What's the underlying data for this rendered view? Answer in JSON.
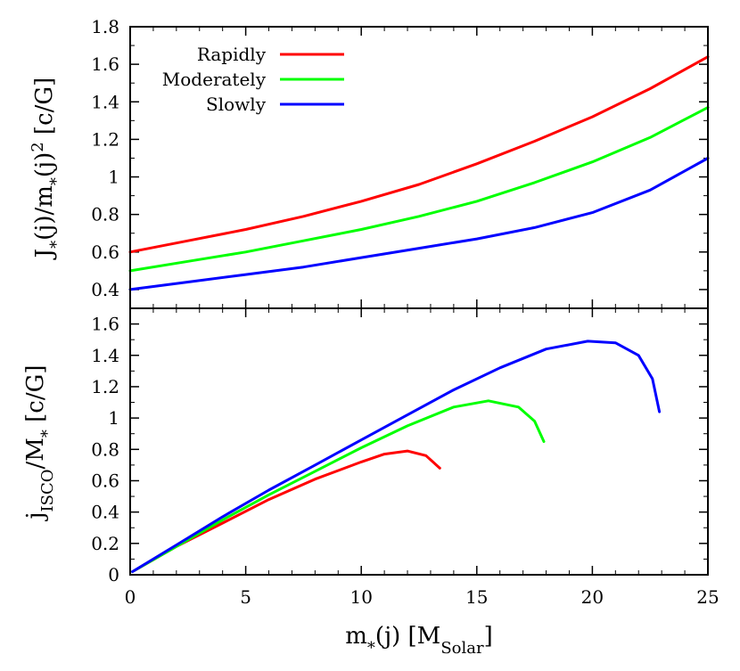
{
  "chart_data": [
    {
      "type": "line",
      "panel": "top",
      "ylabel_parts": {
        "main": "J",
        "sub1": "*",
        "mid": "(j)/m",
        "sub2": "*",
        "tail": "(j)",
        "sup": "2",
        "unit": " [c/G]"
      },
      "xlim": [
        0,
        25
      ],
      "ylim": [
        0.3,
        1.8
      ],
      "yticks": [
        0.4,
        0.6,
        0.8,
        1,
        1.2,
        1.4,
        1.6,
        1.8
      ],
      "ytick_labels": [
        "0.4",
        "0.6",
        "0.8",
        "1",
        "1.2",
        "1.4",
        "1.6",
        "1.8"
      ],
      "legend": {
        "position": "top-left"
      },
      "series": [
        {
          "name": "Rapidly",
          "color": "#ff0000",
          "x": [
            0,
            2.5,
            5,
            7.5,
            10,
            12.5,
            15,
            17.5,
            20,
            22.5,
            25
          ],
          "y": [
            0.6,
            0.66,
            0.72,
            0.79,
            0.87,
            0.96,
            1.07,
            1.19,
            1.32,
            1.47,
            1.64
          ]
        },
        {
          "name": "Moderately",
          "color": "#00ff00",
          "x": [
            0,
            2.5,
            5,
            7.5,
            10,
            12.5,
            15,
            17.5,
            20,
            22.5,
            25
          ],
          "y": [
            0.5,
            0.55,
            0.6,
            0.66,
            0.72,
            0.79,
            0.87,
            0.97,
            1.08,
            1.21,
            1.37
          ]
        },
        {
          "name": "Slowly",
          "color": "#0000ff",
          "x": [
            0,
            2.5,
            5,
            7.5,
            10,
            12.5,
            15,
            17.5,
            20,
            22.5,
            25
          ],
          "y": [
            0.4,
            0.44,
            0.48,
            0.52,
            0.57,
            0.62,
            0.67,
            0.73,
            0.81,
            0.93,
            1.1
          ]
        }
      ]
    },
    {
      "type": "line",
      "panel": "bottom",
      "ylabel_parts": {
        "main": "j",
        "sub1": "ISCO",
        "mid": "/M",
        "sub2": "*",
        "unit": " [c/G]"
      },
      "xlabel_parts": {
        "main": "m",
        "sub1": "*",
        "mid": "(j) [M",
        "sub2": "Solar",
        "tail": "]"
      },
      "xlim": [
        0,
        25
      ],
      "ylim": [
        0,
        1.7
      ],
      "xticks": [
        0,
        5,
        10,
        15,
        20,
        25
      ],
      "xtick_labels": [
        "0",
        "5",
        "10",
        "15",
        "20",
        "25"
      ],
      "yticks": [
        0,
        0.2,
        0.4,
        0.6,
        0.8,
        1,
        1.2,
        1.4,
        1.6
      ],
      "ytick_labels": [
        "0",
        "0.2",
        "0.4",
        "0.6",
        "0.8",
        "1",
        "1.2",
        "1.4",
        "1.6"
      ],
      "series": [
        {
          "name": "Rapidly",
          "color": "#ff0000",
          "x": [
            0.1,
            2,
            4,
            6,
            8,
            10,
            11,
            12,
            12.8,
            13.4
          ],
          "y": [
            0.02,
            0.18,
            0.33,
            0.48,
            0.61,
            0.72,
            0.77,
            0.79,
            0.76,
            0.68
          ]
        },
        {
          "name": "Moderately",
          "color": "#00ff00",
          "x": [
            0.1,
            2,
            4,
            6,
            8,
            10,
            12,
            14,
            15.5,
            16.8,
            17.5,
            17.9
          ],
          "y": [
            0.02,
            0.18,
            0.35,
            0.51,
            0.66,
            0.81,
            0.95,
            1.07,
            1.11,
            1.07,
            0.98,
            0.85
          ]
        },
        {
          "name": "Slowly",
          "color": "#0000ff",
          "x": [
            0.1,
            2,
            4,
            6,
            8,
            10,
            12,
            14,
            16,
            18,
            19.8,
            21,
            22,
            22.6,
            22.9
          ],
          "y": [
            0.02,
            0.19,
            0.37,
            0.54,
            0.7,
            0.86,
            1.02,
            1.18,
            1.32,
            1.44,
            1.49,
            1.48,
            1.4,
            1.25,
            1.04
          ]
        }
      ]
    }
  ]
}
